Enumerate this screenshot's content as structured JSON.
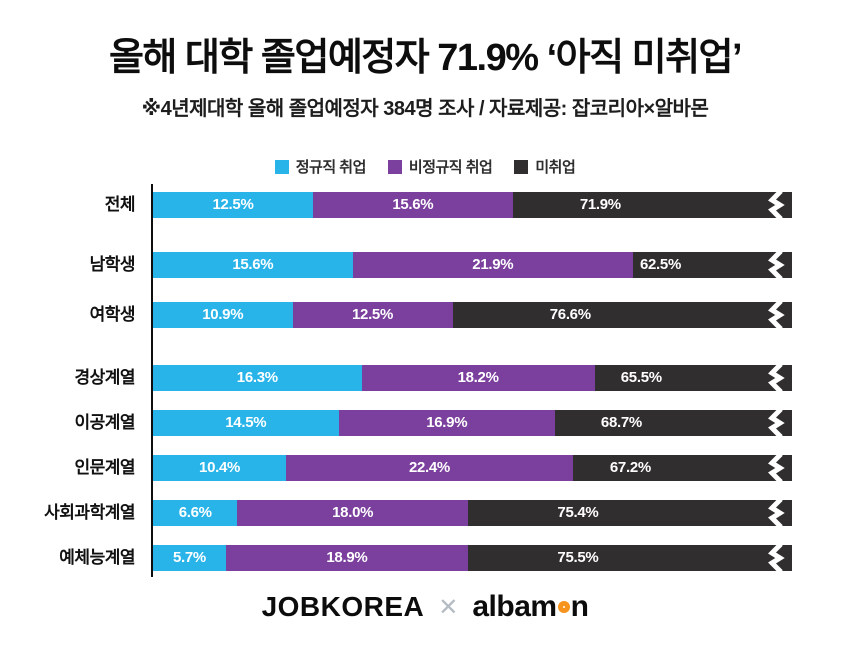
{
  "title": "올해 대학 졸업예정자  71.9% ‘아직 미취업’",
  "subtitle": "※4년제대학 올해 졸업예정자 384명 조사 / 자료제공: 잡코리아×알바몬",
  "legend": [
    {
      "label": "정규직 취업",
      "color": "#29b4e9"
    },
    {
      "label": "비정규직 취업",
      "color": "#7b3f9d"
    },
    {
      "label": "미취업",
      "color": "#312e2f"
    }
  ],
  "chart_data": {
    "type": "bar",
    "orientation": "horizontal",
    "stacked": true,
    "unit": "%",
    "truncated_axis": true,
    "legend_position": "top",
    "categories": [
      "전체",
      "남학생",
      "여학생",
      "경상계열",
      "이공계열",
      "인문계열",
      "사회과학계열",
      "예체능계열"
    ],
    "series": [
      {
        "name": "정규직 취업",
        "color": "#29b4e9",
        "values": [
          12.5,
          15.6,
          10.9,
          16.3,
          14.5,
          10.4,
          6.6,
          5.7
        ]
      },
      {
        "name": "비정규직 취업",
        "color": "#7b3f9d",
        "values": [
          15.6,
          21.9,
          12.5,
          18.2,
          16.9,
          22.4,
          18.0,
          18.9
        ]
      },
      {
        "name": "미취업",
        "color": "#312e2f",
        "values": [
          71.9,
          62.5,
          76.6,
          65.5,
          68.7,
          67.2,
          75.4,
          75.5
        ]
      }
    ],
    "groups": [
      [
        0
      ],
      [
        1,
        2
      ],
      [
        3,
        4,
        5,
        6,
        7
      ]
    ]
  },
  "footer": {
    "brand_left": "JOBKOREA",
    "separator": "✕",
    "brand_right": "albamon"
  }
}
